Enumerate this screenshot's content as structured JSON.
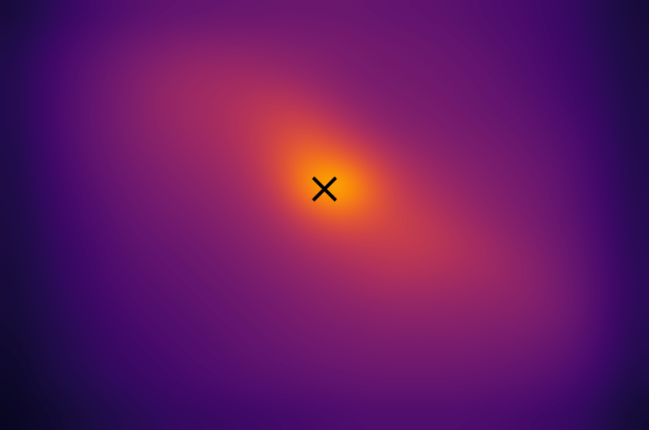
{
  "chart_data": {
    "type": "heatmap",
    "color": "inferno",
    "tick_labels": false,
    "value_range": [
      0,
      1
    ],
    "cells": [
      [
        0.1,
        0.14,
        0.18,
        0.22,
        0.25,
        0.27,
        0.28,
        0.29,
        0.29,
        0.3,
        0.3,
        0.3,
        0.29,
        0.28,
        0.27,
        0.26,
        0.24,
        0.22,
        0.2,
        0.17,
        0.13,
        0.1
      ],
      [
        0.12,
        0.17,
        0.22,
        0.26,
        0.3,
        0.33,
        0.35,
        0.36,
        0.36,
        0.35,
        0.34,
        0.33,
        0.32,
        0.31,
        0.3,
        0.28,
        0.26,
        0.24,
        0.21,
        0.18,
        0.14,
        0.11
      ],
      [
        0.13,
        0.19,
        0.24,
        0.29,
        0.34,
        0.38,
        0.41,
        0.42,
        0.42,
        0.4,
        0.38,
        0.35,
        0.33,
        0.32,
        0.31,
        0.3,
        0.28,
        0.25,
        0.22,
        0.19,
        0.15,
        0.11
      ],
      [
        0.13,
        0.19,
        0.25,
        0.3,
        0.35,
        0.4,
        0.43,
        0.45,
        0.48,
        0.5,
        0.46,
        0.4,
        0.36,
        0.34,
        0.33,
        0.31,
        0.29,
        0.27,
        0.24,
        0.2,
        0.16,
        0.12
      ],
      [
        0.13,
        0.19,
        0.25,
        0.3,
        0.35,
        0.39,
        0.42,
        0.45,
        0.5,
        0.56,
        0.58,
        0.5,
        0.42,
        0.37,
        0.35,
        0.33,
        0.31,
        0.29,
        0.26,
        0.22,
        0.17,
        0.12
      ],
      [
        0.12,
        0.18,
        0.24,
        0.29,
        0.33,
        0.37,
        0.4,
        0.43,
        0.48,
        0.6,
        0.7,
        0.66,
        0.55,
        0.45,
        0.4,
        0.36,
        0.34,
        0.31,
        0.28,
        0.24,
        0.18,
        0.13
      ],
      [
        0.12,
        0.17,
        0.22,
        0.27,
        0.31,
        0.34,
        0.37,
        0.4,
        0.45,
        0.55,
        0.8,
        0.9,
        0.68,
        0.52,
        0.45,
        0.4,
        0.36,
        0.33,
        0.3,
        0.25,
        0.19,
        0.13
      ],
      [
        0.11,
        0.16,
        0.21,
        0.25,
        0.29,
        0.32,
        0.34,
        0.37,
        0.41,
        0.47,
        0.58,
        0.66,
        0.62,
        0.55,
        0.5,
        0.44,
        0.39,
        0.35,
        0.31,
        0.26,
        0.2,
        0.14
      ],
      [
        0.11,
        0.15,
        0.19,
        0.23,
        0.27,
        0.29,
        0.31,
        0.34,
        0.37,
        0.41,
        0.46,
        0.5,
        0.52,
        0.53,
        0.52,
        0.48,
        0.43,
        0.38,
        0.33,
        0.28,
        0.21,
        0.14
      ],
      [
        0.1,
        0.14,
        0.18,
        0.22,
        0.25,
        0.27,
        0.29,
        0.31,
        0.34,
        0.37,
        0.4,
        0.43,
        0.46,
        0.48,
        0.47,
        0.45,
        0.43,
        0.4,
        0.35,
        0.29,
        0.22,
        0.15
      ],
      [
        0.1,
        0.13,
        0.17,
        0.2,
        0.23,
        0.25,
        0.27,
        0.29,
        0.31,
        0.33,
        0.36,
        0.38,
        0.4,
        0.41,
        0.41,
        0.4,
        0.39,
        0.38,
        0.35,
        0.3,
        0.22,
        0.15
      ],
      [
        0.09,
        0.12,
        0.15,
        0.18,
        0.21,
        0.23,
        0.25,
        0.27,
        0.29,
        0.31,
        0.33,
        0.34,
        0.35,
        0.36,
        0.36,
        0.36,
        0.35,
        0.34,
        0.32,
        0.28,
        0.21,
        0.14
      ],
      [
        0.08,
        0.11,
        0.14,
        0.17,
        0.19,
        0.21,
        0.23,
        0.25,
        0.27,
        0.28,
        0.3,
        0.31,
        0.32,
        0.32,
        0.32,
        0.32,
        0.31,
        0.3,
        0.28,
        0.25,
        0.19,
        0.13
      ],
      [
        0.07,
        0.1,
        0.12,
        0.15,
        0.17,
        0.19,
        0.21,
        0.22,
        0.24,
        0.25,
        0.26,
        0.27,
        0.28,
        0.28,
        0.28,
        0.28,
        0.27,
        0.26,
        0.24,
        0.21,
        0.16,
        0.11
      ],
      [
        0.06,
        0.08,
        0.1,
        0.12,
        0.14,
        0.16,
        0.17,
        0.18,
        0.19,
        0.2,
        0.21,
        0.22,
        0.23,
        0.23,
        0.23,
        0.23,
        0.22,
        0.21,
        0.19,
        0.17,
        0.13,
        0.09
      ]
    ],
    "points": [
      {
        "col": 10.5,
        "row": 6.1,
        "marker": "x",
        "color": "#000000"
      }
    ]
  }
}
